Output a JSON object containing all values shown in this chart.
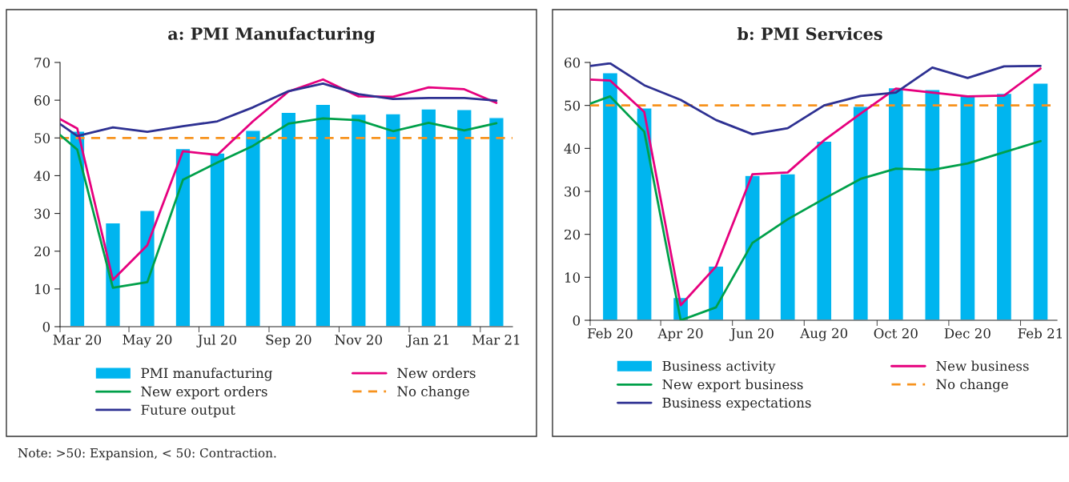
{
  "chart_data": [
    {
      "type": "bar",
      "title": "a: PMI Manufacturing",
      "x": [
        "2020-03",
        "2020-04",
        "2020-05",
        "2020-06",
        "2020-07",
        "2020-08",
        "2020-09",
        "2020-10",
        "2020-11",
        "2020-12",
        "2021-01",
        "2021-02",
        "2021-03"
      ],
      "xlim": [
        "2020-02-15",
        "2021-03-15"
      ],
      "xticks": [
        {
          "value": "2020-03",
          "label": "Mar 20"
        },
        {
          "value": "2020-05",
          "label": "May 20"
        },
        {
          "value": "2020-07",
          "label": "Jul 20"
        },
        {
          "value": "2020-09",
          "label": "Sep 20"
        },
        {
          "value": "2020-11",
          "label": "Nov 20"
        },
        {
          "value": "2021-01",
          "label": "Jan 21"
        },
        {
          "value": "2021-03",
          "label": "Mar 21"
        },
        {
          "value": "2020-02-15",
          "label": null
        },
        {
          "value": "2020-04-15",
          "label": null
        },
        {
          "value": "2020-06-15",
          "label": null
        },
        {
          "value": "2020-08-15",
          "label": null
        },
        {
          "value": "2020-10-15",
          "label": null
        },
        {
          "value": "2020-12-15",
          "label": null
        },
        {
          "value": "2021-02-15",
          "label": null
        }
      ],
      "ylim": [
        0,
        70
      ],
      "yticks": [
        0,
        10,
        20,
        30,
        40,
        50,
        60,
        70
      ],
      "series": [
        {
          "name": "PMI manufacturing",
          "color": "#00b5ef",
          "values": [
            51.8,
            27.5,
            30.8,
            47.2,
            46.0,
            52.0,
            56.8,
            58.9,
            56.3,
            56.4,
            57.7,
            57.5,
            55.4
          ]
        },
        {
          "name": "New orders",
          "type": "line",
          "color": "#e6007e",
          "x": [
            "2020-02-15",
            "2020-03",
            "2020-04",
            "2020-05",
            "2020-06",
            "2020-07",
            "2020-08",
            "2020-09",
            "2020-10",
            "2020-11",
            "2020-12",
            "2021-01",
            "2021-02",
            "2021-03"
          ],
          "values": [
            55.0,
            52.5,
            12.4,
            21.6,
            46.5,
            45.5,
            54.4,
            62.3,
            65.5,
            61.0,
            60.9,
            63.4,
            62.9,
            59.3
          ]
        },
        {
          "name": "New export orders",
          "type": "line",
          "color": "#00a04a",
          "x": [
            "2020-02-15",
            "2020-03",
            "2020-04",
            "2020-05",
            "2020-06",
            "2020-07",
            "2020-08",
            "2020-09",
            "2020-10",
            "2020-11",
            "2020-12",
            "2021-01",
            "2021-02",
            "2021-03"
          ],
          "values": [
            50.8,
            46.9,
            10.3,
            11.8,
            38.9,
            43.5,
            47.9,
            53.8,
            55.2,
            54.7,
            51.8,
            54.0,
            52.0,
            53.9
          ]
        },
        {
          "name": "Future output",
          "type": "line",
          "color": "#2e3192",
          "x": [
            "2020-02-15",
            "2020-03",
            "2020-04",
            "2020-05",
            "2020-06",
            "2020-07",
            "2020-08",
            "2020-09",
            "2020-10",
            "2020-11",
            "2020-12",
            "2021-01",
            "2021-02",
            "2021-03"
          ],
          "values": [
            53.7,
            50.5,
            52.8,
            51.6,
            53.1,
            54.4,
            58.1,
            62.4,
            64.4,
            61.6,
            60.3,
            60.6,
            60.6,
            59.9
          ]
        }
      ],
      "ref_lines": [
        {
          "axis": "y",
          "value": 50,
          "label": "No change",
          "color": "#f7931e",
          "line_style": "dashed"
        }
      ],
      "legend": "bottom",
      "grid": false,
      "annotations": [
        "Note: >50: Expansion, < 50: Contraction."
      ]
    },
    {
      "type": "bar",
      "title": "b: PMI Services",
      "x": [
        "2020-02",
        "2020-03",
        "2020-04",
        "2020-05",
        "2020-06",
        "2020-07",
        "2020-08",
        "2020-09",
        "2020-10",
        "2020-11",
        "2020-12",
        "2021-01",
        "2021-02"
      ],
      "xlim": [
        "2020-01-15",
        "2021-02-15"
      ],
      "xticks": [
        {
          "value": "2020-02",
          "label": "Feb 20"
        },
        {
          "value": "2020-04",
          "label": "Apr 20"
        },
        {
          "value": "2020-06",
          "label": "Jun 20"
        },
        {
          "value": "2020-08",
          "label": "Aug 20"
        },
        {
          "value": "2020-10",
          "label": "Oct 20"
        },
        {
          "value": "2020-12",
          "label": "Dec 20"
        },
        {
          "value": "2021-02",
          "label": "Feb 21"
        },
        {
          "value": "2020-01-15",
          "label": null
        },
        {
          "value": "2020-03-15",
          "label": null
        },
        {
          "value": "2020-05-15",
          "label": null
        },
        {
          "value": "2020-07-15",
          "label": null
        },
        {
          "value": "2020-09-15",
          "label": null
        },
        {
          "value": "2020-11-15",
          "label": null
        },
        {
          "value": "2021-01-15",
          "label": null
        }
      ],
      "ylim": [
        0,
        60
      ],
      "yticks": [
        0,
        10,
        20,
        30,
        40,
        50,
        60
      ],
      "series": [
        {
          "name": "Business activity",
          "color": "#00b5ef",
          "values": [
            57.6,
            49.4,
            5.3,
            12.6,
            33.7,
            34.1,
            41.7,
            49.8,
            54.1,
            53.7,
            52.2,
            52.8,
            55.2
          ]
        },
        {
          "name": "New business",
          "type": "line",
          "color": "#e6007e",
          "x": [
            "2020-01-15",
            "2020-02",
            "2020-03",
            "2020-04",
            "2020-05",
            "2020-06",
            "2020-07",
            "2020-08",
            "2020-09",
            "2020-10",
            "2020-11",
            "2020-12",
            "2021-01",
            "2021-02"
          ],
          "values": [
            56.0,
            55.8,
            48.5,
            3.5,
            12.5,
            34.0,
            34.4,
            41.9,
            48.1,
            53.9,
            53.0,
            52.1,
            52.3,
            58.6
          ]
        },
        {
          "name": "New export business",
          "type": "line",
          "color": "#00a04a",
          "x": [
            "2020-01-15",
            "2020-02",
            "2020-03",
            "2020-04",
            "2020-05",
            "2020-06",
            "2020-07",
            "2020-08",
            "2020-09",
            "2020-10",
            "2020-11",
            "2020-12",
            "2021-01",
            "2021-02"
          ],
          "values": [
            50.4,
            52.1,
            43.9,
            0.0,
            3.0,
            18.0,
            23.5,
            28.3,
            32.9,
            35.3,
            35.0,
            36.5,
            39.1,
            41.7
          ]
        },
        {
          "name": "Business expectations",
          "type": "line",
          "color": "#2e3192",
          "x": [
            "2020-01-15",
            "2020-02",
            "2020-03",
            "2020-04",
            "2020-05",
            "2020-06",
            "2020-07",
            "2020-08",
            "2020-09",
            "2020-10",
            "2020-11",
            "2020-12",
            "2021-01",
            "2021-02"
          ],
          "values": [
            59.2,
            59.8,
            54.7,
            51.3,
            46.6,
            43.3,
            44.7,
            50.0,
            52.2,
            53.0,
            58.8,
            56.4,
            59.1,
            59.2
          ]
        }
      ],
      "ref_lines": [
        {
          "axis": "y",
          "value": 50,
          "label": "No change",
          "color": "#f7931e",
          "line_style": "dashed"
        }
      ],
      "legend": "bottom",
      "grid": false
    }
  ]
}
